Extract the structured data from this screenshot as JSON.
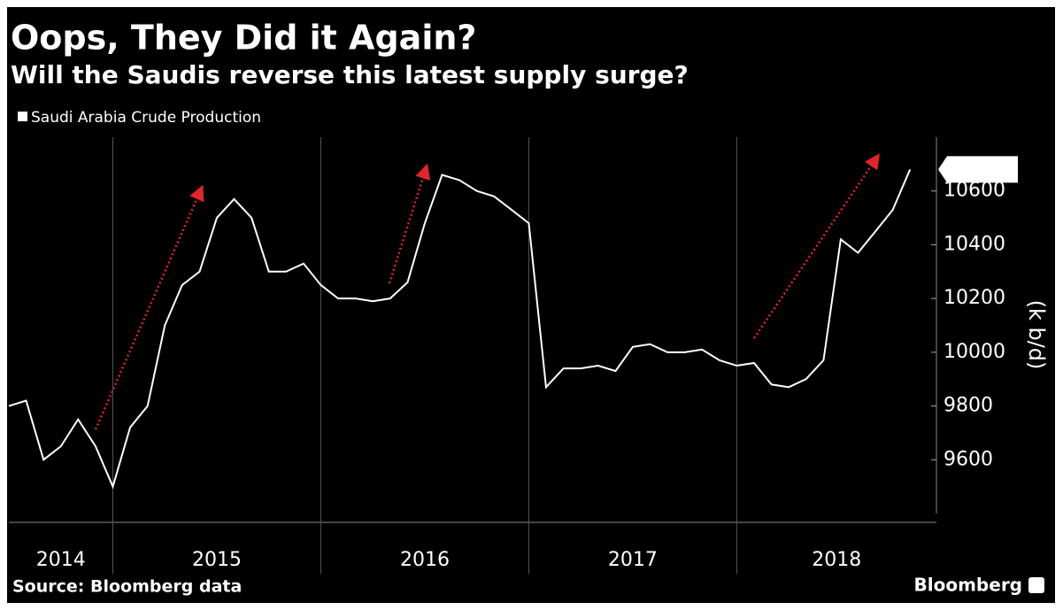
{
  "chart_data": {
    "type": "line",
    "title": "Oops, They Did it Again?",
    "subtitle": "Will the Saudis reverse this latest supply surge?",
    "y_label": "(k b/d)",
    "source": "Source: Bloomberg data",
    "brand": "Bloomberg",
    "x": [
      2014.5,
      2014.583,
      2014.667,
      2014.75,
      2014.833,
      2014.917,
      2015,
      2015.083,
      2015.167,
      2015.25,
      2015.333,
      2015.417,
      2015.5,
      2015.583,
      2015.667,
      2015.75,
      2015.833,
      2015.917,
      2016,
      2016.083,
      2016.167,
      2016.25,
      2016.333,
      2016.417,
      2016.5,
      2016.583,
      2016.667,
      2016.75,
      2016.833,
      2016.917,
      2017,
      2017.083,
      2017.167,
      2017.25,
      2017.333,
      2017.417,
      2017.5,
      2017.583,
      2017.667,
      2017.75,
      2017.833,
      2017.917,
      2018,
      2018.083,
      2018.167,
      2018.25,
      2018.333,
      2018.417,
      2018.5,
      2018.583,
      2018.667,
      2018.75,
      2018.833
    ],
    "series": [
      {
        "name": "Saudi Arabia Crude Production",
        "color": "#ffffff",
        "values": [
          9800,
          9820,
          9600,
          9650,
          9750,
          9650,
          9500,
          9720,
          9800,
          10100,
          10250,
          10300,
          10500,
          10570,
          10500,
          10300,
          10300,
          10330,
          10250,
          10200,
          10200,
          10190,
          10200,
          10260,
          10480,
          10660,
          10640,
          10600,
          10580,
          10530,
          10480,
          9870,
          9940,
          9940,
          9950,
          9930,
          10020,
          10030,
          10000,
          10000,
          10010,
          9970,
          9950,
          9960,
          9880,
          9870,
          9900,
          9970,
          10420,
          10370,
          10450,
          10530,
          10680
        ]
      }
    ],
    "xlim": [
      2014.5,
      2018.96
    ],
    "xticks": [
      2015,
      2016,
      2017,
      2018
    ],
    "year_labels": [
      2014,
      2015,
      2016,
      2017,
      2018
    ],
    "ylim": [
      9400,
      10800
    ],
    "yticks": [
      9600,
      9800,
      10000,
      10200,
      10400,
      10600
    ],
    "y_axis_side": "right"
  }
}
